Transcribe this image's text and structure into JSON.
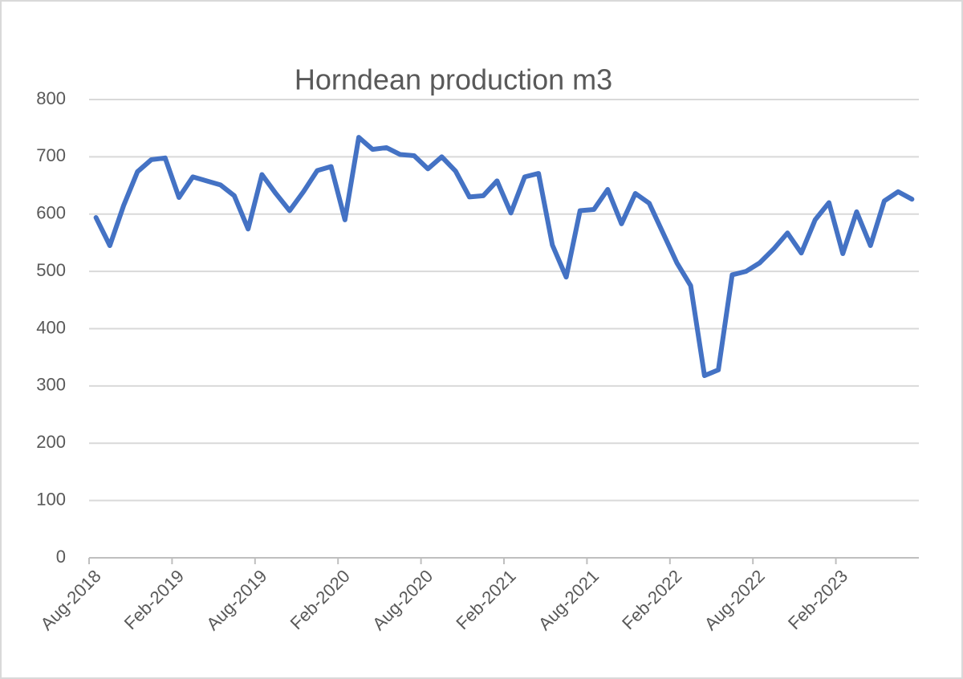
{
  "chart_data": {
    "type": "line",
    "title": "Horndean production m3",
    "categories": [
      "Aug-2018",
      null,
      null,
      null,
      null,
      null,
      "Feb-2019",
      null,
      null,
      null,
      null,
      null,
      "Aug-2019",
      null,
      null,
      null,
      null,
      null,
      "Feb-2020",
      null,
      null,
      null,
      null,
      null,
      "Aug-2020",
      null,
      null,
      null,
      null,
      null,
      "Feb-2021",
      null,
      null,
      null,
      null,
      null,
      "Aug-2021",
      null,
      null,
      null,
      null,
      null,
      "Feb-2022",
      null,
      null,
      null,
      null,
      null,
      "Aug-2022",
      null,
      null,
      null,
      null,
      null,
      "Feb-2023",
      null,
      null,
      null,
      null,
      null
    ],
    "series": [
      {
        "name": "Horndean production m3",
        "color": "#4472c4",
        "values": [
          594,
          545,
          615,
          674,
          695,
          698,
          629,
          665,
          658,
          651,
          632,
          574,
          669,
          636,
          606,
          639,
          676,
          683,
          590,
          734,
          713,
          716,
          704,
          702,
          679,
          700,
          675,
          630,
          632,
          658,
          602,
          665,
          671,
          546,
          490,
          606,
          608,
          643,
          583,
          636,
          619,
          567,
          515,
          475,
          318,
          328,
          494,
          500,
          515,
          539,
          567,
          532,
          590,
          620,
          531,
          604,
          545,
          623,
          639,
          626
        ]
      }
    ],
    "ylim": [
      0,
      800
    ],
    "yticks": [
      0,
      100,
      200,
      300,
      400,
      500,
      600,
      700,
      800
    ],
    "grid": true
  }
}
